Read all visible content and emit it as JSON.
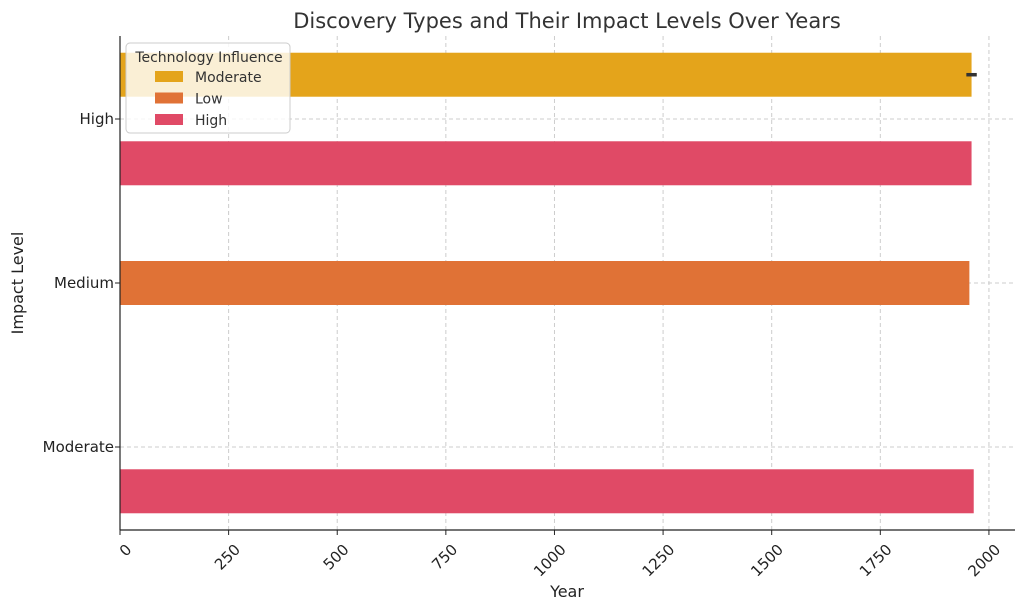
{
  "chart_data": {
    "type": "bar",
    "orientation": "horizontal",
    "title": "Discovery Types and Their Impact Levels Over Years",
    "xlabel": "Year",
    "ylabel": "Impact Level",
    "xlim": [
      0,
      2060
    ],
    "x_ticks": [
      "0",
      "250",
      "500",
      "750",
      "1000",
      "1250",
      "1500",
      "1750",
      "2000"
    ],
    "x_tick_values": [
      0,
      250,
      500,
      750,
      1000,
      1250,
      1500,
      1750,
      2000
    ],
    "categories": [
      "High",
      "Medium",
      "Moderate"
    ],
    "grid": true,
    "legend": {
      "title": "Technology Influence",
      "placement": "top-left",
      "entries": [
        {
          "name": "Moderate",
          "color": "#E4A41B"
        },
        {
          "name": "Low",
          "color": "#E07236"
        },
        {
          "name": "High",
          "color": "#E04A66"
        }
      ]
    },
    "series": [
      {
        "name": "Moderate",
        "color": "#E4A41B",
        "values": [
          1960,
          null,
          null
        ],
        "error": [
          12,
          null,
          null
        ]
      },
      {
        "name": "Low",
        "color": "#E07236",
        "values": [
          null,
          1955,
          null
        ]
      },
      {
        "name": "High",
        "color": "#E04A66",
        "values": [
          1960,
          null,
          1965
        ]
      }
    ]
  }
}
